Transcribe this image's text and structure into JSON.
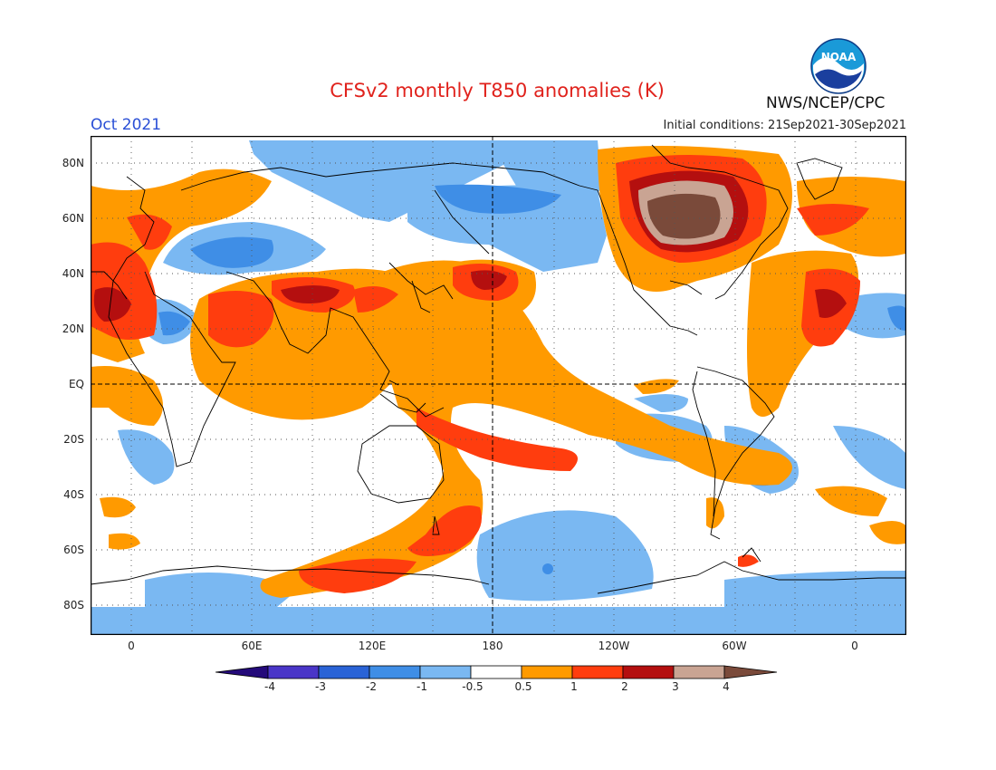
{
  "header": {
    "title": "CFSv2 monthly T850 anomalies (K)",
    "valid_month": "Oct 2021",
    "initial_conditions": "Initial conditions: 21Sep2021-30Sep2021",
    "agency": "NWS/NCEP/CPC",
    "logo_text": "NOAA"
  },
  "map": {
    "projection": "cylindrical equidistant, Greenwich-centered right half, dateline at center",
    "lat_labels": [
      "80N",
      "60N",
      "40N",
      "20N",
      "EQ",
      "20S",
      "40S",
      "60S",
      "80S"
    ],
    "lon_labels": [
      "0",
      "60E",
      "120E",
      "180",
      "120W",
      "60W",
      "0"
    ],
    "grid": "dotted every 20 degrees",
    "reference_lines": [
      "Equator (dashed)",
      "180 meridian (dashed)"
    ]
  },
  "colorbar": {
    "labels": [
      "-4",
      "-3",
      "-2",
      "-1",
      "-0.5",
      "0.5",
      "1",
      "2",
      "3",
      "4"
    ],
    "colors": [
      "#240a7a",
      "#4a36c8",
      "#2a63d6",
      "#3f8ee6",
      "#7ab8f2",
      "#ffffff",
      "#ff9a00",
      "#ff3d0e",
      "#b40f0f",
      "#c9a493",
      "#7a4a3a"
    ]
  },
  "colors": {
    "title": "#e0221c",
    "month": "#2a4fd6",
    "warm_1": "#ff9a00",
    "warm_2": "#ff3d0e",
    "warm_3": "#b40f0f",
    "warm_4": "#c9a493",
    "warm_5": "#7a4a3a",
    "cool_1": "#7ab8f2",
    "cool_2": "#3f8ee6"
  }
}
